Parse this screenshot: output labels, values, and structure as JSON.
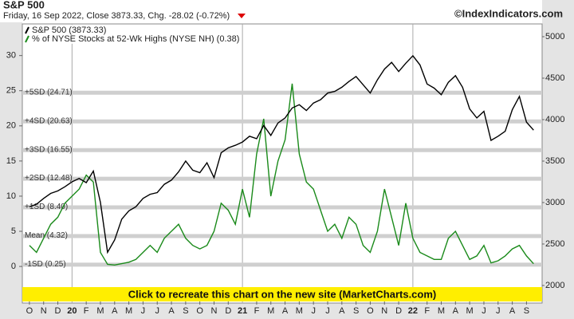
{
  "chart_data": {
    "type": "line",
    "title": "S&P 500",
    "subtitle": "Friday, 16 Sep 2022, Close 3873.33, Chg. -28.02 (-0.72%)",
    "watermark": "©IndexIndicators.com",
    "banner": "Click to recreate this chart on the new site (MarketCharts.com)",
    "x": [
      0,
      0.5,
      1,
      1.5,
      2,
      2.5,
      3,
      3.5,
      4,
      4.5,
      5,
      5.5,
      6,
      6.5,
      7,
      7.5,
      8,
      8.5,
      9,
      9.5,
      10,
      10.5,
      11,
      11.5,
      12,
      12.5,
      13,
      13.5,
      14,
      14.5,
      15,
      15.5,
      16,
      16.5,
      17,
      17.5,
      18,
      18.5,
      19,
      19.5,
      20,
      20.5,
      21,
      21.5,
      22,
      22.5,
      23,
      23.5,
      24,
      24.5,
      25,
      25.5,
      26,
      26.5,
      27,
      27.5,
      28,
      28.5,
      29,
      29.5,
      30,
      30.5,
      31,
      31.5,
      32,
      32.5,
      33,
      33.5,
      34,
      34.5,
      35,
      35.5
    ],
    "series": [
      {
        "name": "S&P 500 (3873.33)",
        "color": "#000000",
        "axis": "y2",
        "values": [
          2950,
          2980,
          3050,
          3110,
          3140,
          3190,
          3250,
          3290,
          3240,
          3380,
          3000,
          2400,
          2550,
          2800,
          2900,
          2950,
          3050,
          3100,
          3120,
          3220,
          3270,
          3370,
          3500,
          3390,
          3360,
          3480,
          3300,
          3600,
          3660,
          3690,
          3730,
          3800,
          3770,
          3930,
          3810,
          3960,
          4020,
          4140,
          4180,
          4110,
          4200,
          4240,
          4320,
          4340,
          4390,
          4460,
          4520,
          4420,
          4320,
          4480,
          4610,
          4690,
          4580,
          4680,
          4770,
          4660,
          4430,
          4380,
          4300,
          4450,
          4530,
          4390,
          4130,
          4020,
          4100,
          3750,
          3800,
          3860,
          4120,
          4280,
          3970,
          3873.33
        ]
      },
      {
        "name": "% of NYSE Stocks at 52-Wk Highs (NYSE NH) (0.38)",
        "color": "#1a8a1a",
        "values": [
          3,
          2,
          4,
          6,
          7,
          9,
          10,
          11,
          13,
          12,
          2,
          0.3,
          0.2,
          0.4,
          0.6,
          1,
          2,
          3,
          2,
          4,
          5,
          6,
          4,
          3,
          2.5,
          3,
          5,
          9,
          8,
          6,
          11,
          7,
          16,
          21,
          10,
          15,
          18,
          26,
          16,
          12,
          11,
          8,
          5,
          6,
          4,
          7,
          6,
          3,
          2,
          5,
          11,
          7,
          3,
          9,
          4,
          2,
          1.5,
          1,
          1,
          4,
          5,
          3,
          1,
          1.5,
          3,
          0.5,
          0.8,
          1.5,
          2.5,
          3,
          1.5,
          0.38
        ]
      }
    ],
    "bands": [
      {
        "label": "+5SD (24.71)",
        "value": 24.71
      },
      {
        "label": "+4SD (20.63)",
        "value": 20.63
      },
      {
        "label": "+3SD (16.55)",
        "value": 16.55
      },
      {
        "label": "+2SD (12.48)",
        "value": 12.48
      },
      {
        "label": "+1SD (8.40)",
        "value": 8.4
      },
      {
        "label": "Mean (4.32)",
        "value": 4.32
      },
      {
        "label": "-1SD (0.25)",
        "value": 0.25
      }
    ],
    "xlim": [
      -0.5,
      36.1
    ],
    "xticks": [
      {
        "value": 0,
        "label": "O"
      },
      {
        "value": 1,
        "label": "N"
      },
      {
        "value": 2,
        "label": "D"
      },
      {
        "value": 3,
        "label": "20"
      },
      {
        "value": 4,
        "label": "F"
      },
      {
        "value": 5,
        "label": "M"
      },
      {
        "value": 6,
        "label": "A"
      },
      {
        "value": 7,
        "label": "M"
      },
      {
        "value": 8,
        "label": "J"
      },
      {
        "value": 9,
        "label": "J"
      },
      {
        "value": 10,
        "label": "A"
      },
      {
        "value": 11,
        "label": "S"
      },
      {
        "value": 12,
        "label": "O"
      },
      {
        "value": 13,
        "label": "N"
      },
      {
        "value": 14,
        "label": "D"
      },
      {
        "value": 15,
        "label": "21"
      },
      {
        "value": 16,
        "label": "F"
      },
      {
        "value": 17,
        "label": "M"
      },
      {
        "value": 18,
        "label": "A"
      },
      {
        "value": 19,
        "label": "M"
      },
      {
        "value": 20,
        "label": "J"
      },
      {
        "value": 21,
        "label": "J"
      },
      {
        "value": 22,
        "label": "A"
      },
      {
        "value": 23,
        "label": "S"
      },
      {
        "value": 24,
        "label": "O"
      },
      {
        "value": 25,
        "label": "N"
      },
      {
        "value": 26,
        "label": "D"
      },
      {
        "value": 27,
        "label": "22"
      },
      {
        "value": 28,
        "label": "F"
      },
      {
        "value": 29,
        "label": "M"
      },
      {
        "value": 30,
        "label": "A"
      },
      {
        "value": 31,
        "label": "M"
      },
      {
        "value": 32,
        "label": "J"
      },
      {
        "value": 33,
        "label": "J"
      },
      {
        "value": 34,
        "label": "A"
      },
      {
        "value": 35,
        "label": "S"
      }
    ],
    "ylim": [
      -4.3,
      34.5
    ],
    "yticks": [
      0,
      5,
      10,
      15,
      20,
      25,
      30
    ],
    "y2lim": [
      1865,
      5154
    ],
    "y2ticks": [
      2000,
      2500,
      3000,
      3500,
      4000,
      4500,
      5000
    ]
  }
}
